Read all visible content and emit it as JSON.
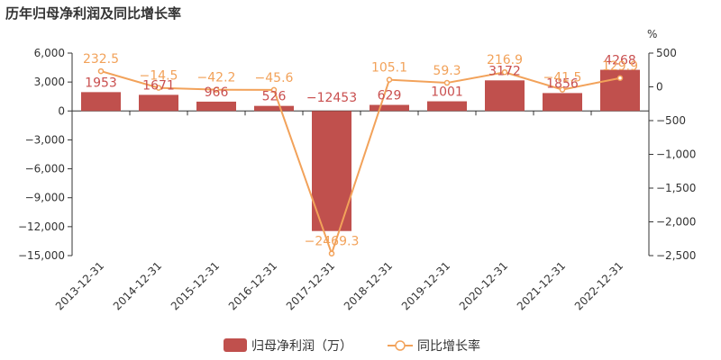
{
  "chart_data": {
    "type": "bar",
    "title": "历年归母净利润及同比增长率",
    "categories": [
      "2013-12-31",
      "2014-12-31",
      "2015-12-31",
      "2016-12-31",
      "2017-12-31",
      "2018-12-31",
      "2019-12-31",
      "2020-12-31",
      "2021-12-31",
      "2022-12-31"
    ],
    "series": [
      {
        "name": "归母净利润（万）",
        "type": "bar",
        "axis": "left",
        "color": "#c0504d",
        "values": [
          1953,
          1671,
          966,
          526,
          -12453,
          629,
          1001,
          3172,
          1856,
          4268
        ],
        "labels": [
          "1953",
          "1671",
          "966",
          "526",
          "−12453",
          "629",
          "1001",
          "3172",
          "1856",
          "4268"
        ]
      },
      {
        "name": "同比增长率",
        "type": "line",
        "axis": "right",
        "color": "#f2a25a",
        "values": [
          232.5,
          -14.5,
          -42.2,
          -45.6,
          -2469.3,
          105.1,
          59.3,
          216.9,
          -41.5,
          129.9
        ],
        "labels": [
          "232.5",
          "−14.5",
          "−42.2",
          "−45.6",
          "−2469.3",
          "105.1",
          "59.3",
          "216.9",
          "−41.5",
          "129.9"
        ]
      }
    ],
    "left_axis": {
      "ylim": [
        -15000,
        6000
      ],
      "ticks": [
        6000,
        3000,
        0,
        -3000,
        -6000,
        -9000,
        -12000,
        -15000
      ],
      "tick_labels": [
        "6,000",
        "3,000",
        "0",
        "−3,000",
        "−6,000",
        "−9,000",
        "−12,000",
        "−15,000"
      ]
    },
    "right_axis": {
      "unit": "%",
      "ylim": [
        -2500,
        500
      ],
      "ticks": [
        500,
        0,
        -500,
        -1000,
        -1500,
        -2000,
        -2500
      ],
      "tick_labels": [
        "500",
        "0",
        "−500",
        "−1,000",
        "−1,500",
        "−2,000",
        "−2,500"
      ]
    },
    "grid": false,
    "legend_position": "bottom-center"
  }
}
